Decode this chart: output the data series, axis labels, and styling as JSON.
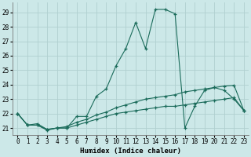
{
  "xlabel": "Humidex (Indice chaleur)",
  "background_color": "#cce8e8",
  "line_color": "#1a6b5a",
  "grid_color": "#b0d0d0",
  "xlim": [
    -0.5,
    23.5
  ],
  "ylim": [
    20.5,
    29.7
  ],
  "xticks": [
    0,
    1,
    2,
    3,
    4,
    5,
    6,
    7,
    8,
    9,
    10,
    11,
    12,
    13,
    14,
    15,
    16,
    17,
    18,
    19,
    20,
    21,
    22,
    23
  ],
  "yticks": [
    21,
    22,
    23,
    24,
    25,
    26,
    27,
    28,
    29
  ],
  "series1_x": [
    0,
    1,
    2,
    3,
    4,
    5,
    6,
    7,
    8,
    9,
    10,
    11,
    12,
    13,
    14,
    15,
    16,
    17,
    18,
    19,
    20,
    21,
    22,
    23
  ],
  "series1_y": [
    22.0,
    21.2,
    21.2,
    20.9,
    21.0,
    21.0,
    21.8,
    21.8,
    23.2,
    23.7,
    25.3,
    26.5,
    28.3,
    26.5,
    29.2,
    29.2,
    28.9,
    21.0,
    22.5,
    23.6,
    23.8,
    23.6,
    23.0,
    22.2
  ],
  "series2_x": [
    0,
    1,
    2,
    3,
    4,
    5,
    6,
    7,
    8,
    9,
    10,
    11,
    12,
    13,
    14,
    15,
    16,
    17,
    18,
    19,
    20,
    21,
    22,
    23
  ],
  "series2_y": [
    22.0,
    21.2,
    21.3,
    20.9,
    21.0,
    21.1,
    21.4,
    21.6,
    21.9,
    22.1,
    22.4,
    22.6,
    22.8,
    23.0,
    23.1,
    23.2,
    23.3,
    23.5,
    23.6,
    23.7,
    23.8,
    23.9,
    23.95,
    22.2
  ],
  "series3_x": [
    0,
    1,
    2,
    3,
    4,
    5,
    6,
    7,
    8,
    9,
    10,
    11,
    12,
    13,
    14,
    15,
    16,
    17,
    18,
    19,
    20,
    21,
    22,
    23
  ],
  "series3_y": [
    22.0,
    21.2,
    21.2,
    20.85,
    21.0,
    21.0,
    21.2,
    21.4,
    21.6,
    21.8,
    22.0,
    22.1,
    22.2,
    22.3,
    22.4,
    22.5,
    22.5,
    22.6,
    22.7,
    22.8,
    22.9,
    23.0,
    23.1,
    22.2
  ]
}
